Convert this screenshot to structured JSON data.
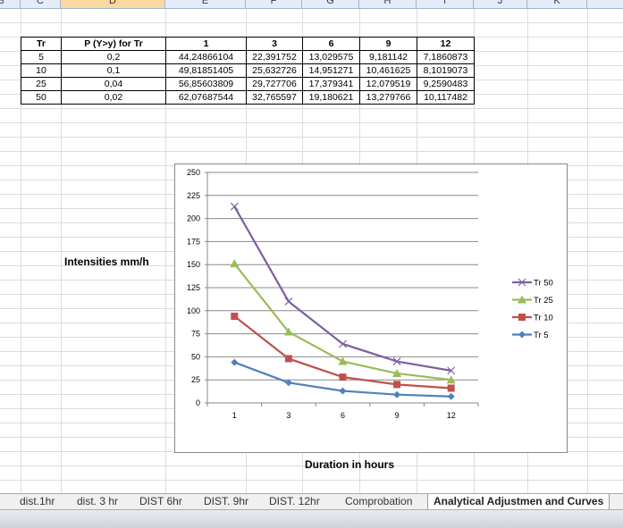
{
  "columns": [
    "B",
    "C",
    "D",
    "E",
    "F",
    "G",
    "H",
    "I",
    "J",
    "K"
  ],
  "selected_column": "D",
  "table": {
    "headers": [
      "Tr",
      "P (Y>y) for Tr",
      "1",
      "3",
      "6",
      "9",
      "12"
    ],
    "rows": [
      [
        "5",
        "0,2",
        "44,24866104",
        "22,391752",
        "13,029575",
        "9,181142",
        "7,1860873"
      ],
      [
        "10",
        "0,1",
        "49,81851405",
        "25,632726",
        "14,951271",
        "10,461625",
        "8,1019073"
      ],
      [
        "25",
        "0,04",
        "56,85603809",
        "29,727706",
        "17,379341",
        "12,079519",
        "9,2590483"
      ],
      [
        "50",
        "0,02",
        "62,07687544",
        "32,765597",
        "19,180621",
        "13,279766",
        "10,117482"
      ]
    ]
  },
  "labels": {
    "y": "Intensities mm/h",
    "x": "Duration in hours"
  },
  "chart_data": {
    "type": "line",
    "categories": [
      "1",
      "3",
      "6",
      "9",
      "12"
    ],
    "ylim": [
      0,
      250
    ],
    "yticks": [
      "0",
      "25",
      "50",
      "75",
      "100",
      "125",
      "150",
      "175",
      "200",
      "225",
      "250"
    ],
    "grid": true,
    "legend": "right",
    "series": [
      {
        "name": "Tr 50",
        "values": [
          213,
          110,
          64,
          45,
          35
        ],
        "color": "#7d5fa0",
        "marker": "x"
      },
      {
        "name": "Tr 25",
        "values": [
          151,
          77,
          45,
          32,
          25
        ],
        "color": "#9bbb59",
        "marker": "triangle"
      },
      {
        "name": "Tr 10",
        "values": [
          94,
          48,
          28,
          20,
          16
        ],
        "color": "#c0504d",
        "marker": "square"
      },
      {
        "name": "Tr 5",
        "values": [
          44,
          22,
          13,
          9,
          7
        ],
        "color": "#4f81bd",
        "marker": "diamond"
      }
    ]
  },
  "tabs": [
    "dist.1hr",
    "dist. 3 hr",
    "DIST 6hr",
    "DIST. 9hr",
    "DIST. 12hr",
    "Comprobation",
    "Analytical Adjustmen and Curves"
  ],
  "active_tab": "Analytical Adjustmen and Curves"
}
